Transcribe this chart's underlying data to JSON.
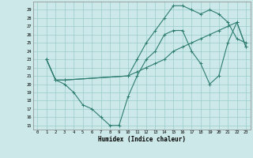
{
  "xlabel": "Humidex (Indice chaleur)",
  "bg_color": "#cce8e8",
  "grid_color": "#99cccc",
  "line_color": "#2d7d6f",
  "xlim": [
    -0.5,
    23.5
  ],
  "ylim": [
    14.5,
    30.0
  ],
  "xticks": [
    0,
    1,
    2,
    3,
    4,
    5,
    6,
    7,
    8,
    9,
    10,
    11,
    12,
    13,
    14,
    15,
    16,
    17,
    18,
    19,
    20,
    21,
    22,
    23
  ],
  "yticks": [
    15,
    16,
    17,
    18,
    19,
    20,
    21,
    22,
    23,
    24,
    25,
    26,
    27,
    28,
    29
  ],
  "line1_x": [
    1,
    2,
    3,
    4,
    5,
    6,
    7,
    8,
    9,
    10,
    11,
    12,
    13,
    14,
    15,
    16,
    17,
    18,
    19,
    20,
    21,
    22,
    23
  ],
  "line1_y": [
    23,
    20.5,
    20,
    19,
    17.5,
    17,
    16,
    15,
    15,
    18.5,
    21,
    23,
    24,
    26,
    26.5,
    26.5,
    24,
    22.5,
    20,
    21,
    25,
    27.5,
    24.5
  ],
  "line2_x": [
    1,
    2,
    3,
    10,
    11,
    12,
    13,
    14,
    15,
    16,
    17,
    18,
    19,
    20,
    21,
    22,
    23
  ],
  "line2_y": [
    23,
    20.5,
    20.5,
    21,
    23,
    25,
    26.5,
    28,
    29.5,
    29.5,
    29,
    28.5,
    29,
    28.5,
    27.5,
    25.5,
    25
  ],
  "line3_x": [
    1,
    2,
    3,
    10,
    11,
    12,
    13,
    14,
    15,
    16,
    17,
    18,
    19,
    20,
    21,
    22,
    23
  ],
  "line3_y": [
    23,
    20.5,
    20.5,
    21,
    21.5,
    22,
    22.5,
    23,
    24,
    24.5,
    25,
    25.5,
    26,
    26.5,
    27,
    27.5,
    24.5
  ]
}
